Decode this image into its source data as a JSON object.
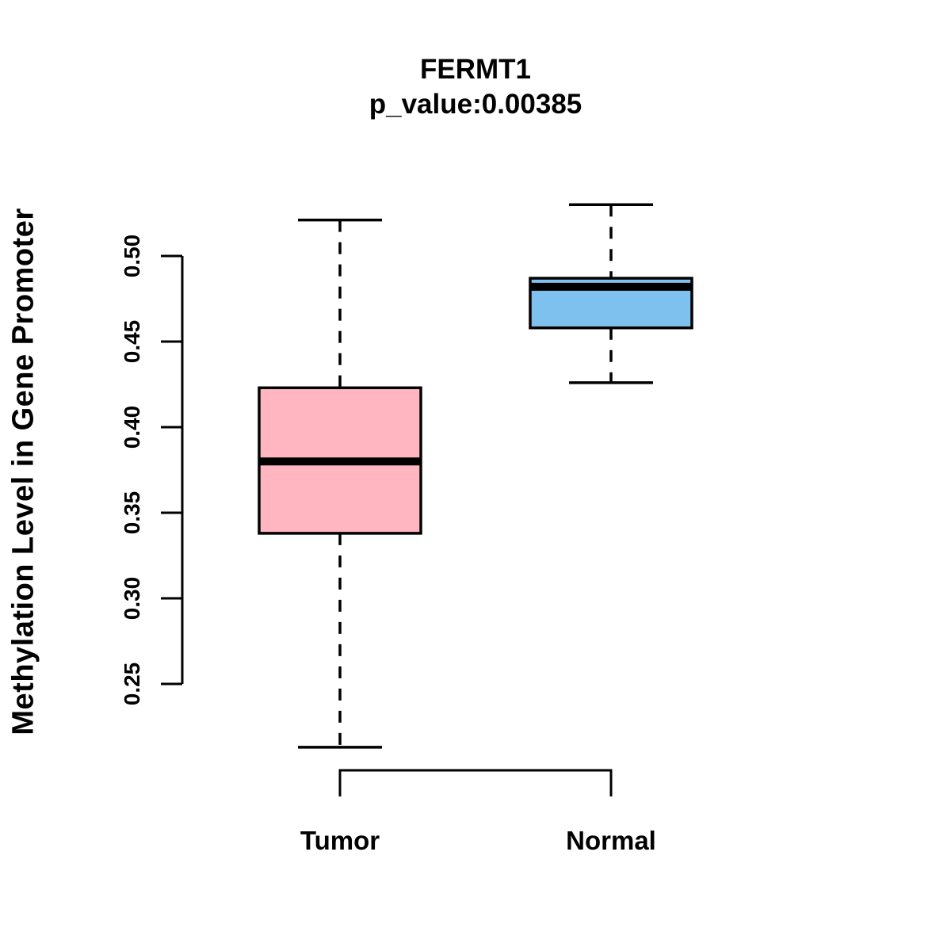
{
  "chart_data": {
    "type": "boxplot",
    "title": "FERMT1",
    "subtitle": "p_value:0.00385",
    "ylabel": "Methylation Level in Gene Promoter",
    "xlabel": "",
    "categories": [
      "Tumor",
      "Normal"
    ],
    "y_ticks": [
      0.25,
      0.3,
      0.35,
      0.4,
      0.45,
      0.5
    ],
    "ylim": [
      0.21,
      0.535
    ],
    "grid": false,
    "legend": "none",
    "whisker_line_style": "dashed",
    "series": [
      {
        "name": "Tumor",
        "color": "#FFB6C1",
        "whisker_low": 0.213,
        "q1": 0.338,
        "median": 0.38,
        "q3": 0.423,
        "whisker_high": 0.521
      },
      {
        "name": "Normal",
        "color": "#7EC0EE",
        "whisker_low": 0.426,
        "q1": 0.458,
        "median": 0.482,
        "q3": 0.487,
        "whisker_high": 0.53
      }
    ]
  }
}
